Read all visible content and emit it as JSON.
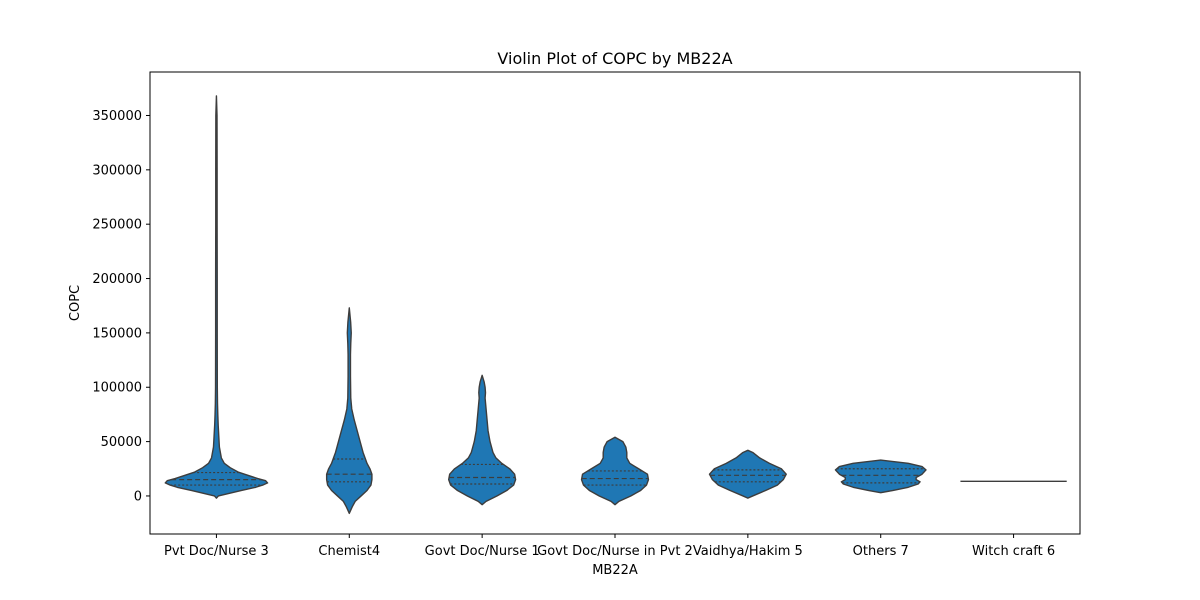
{
  "chart_data": {
    "type": "violin",
    "title": "Violin Plot of COPC by MB22A",
    "xlabel": "MB22A",
    "ylabel": "COPC",
    "ylim": [
      -35000,
      390000
    ],
    "yticks": [
      0,
      50000,
      100000,
      150000,
      200000,
      250000,
      300000,
      350000
    ],
    "categories": [
      "Pvt Doc/Nurse 3",
      "Chemist4",
      "Govt Doc/Nurse 1",
      "Govt Doc/Nurse in Pvt 2",
      "Vaidhya/Hakim 5",
      "Others 7",
      "Witch craft 6"
    ],
    "violin_color": "#1f77b4",
    "inner": "quartile",
    "violins": [
      {
        "category": "Pvt Doc/Nurse 3",
        "q1": 10000,
        "median": 15000,
        "q3": 21500,
        "profile": [
          [
            -2000,
            0
          ],
          [
            0,
            2
          ],
          [
            5000,
            25
          ],
          [
            8000,
            40
          ],
          [
            10000,
            47
          ],
          [
            12000,
            52
          ],
          [
            14000,
            50
          ],
          [
            16000,
            42
          ],
          [
            19000,
            32
          ],
          [
            22000,
            22
          ],
          [
            26000,
            14
          ],
          [
            30000,
            8
          ],
          [
            35000,
            5
          ],
          [
            45000,
            3
          ],
          [
            55000,
            2.4
          ],
          [
            65000,
            1.8
          ],
          [
            75000,
            1.4
          ],
          [
            85000,
            1.1
          ],
          [
            100000,
            0.9
          ],
          [
            150000,
            0.8
          ],
          [
            200000,
            0.8
          ],
          [
            250000,
            0.7
          ],
          [
            300000,
            0.7
          ],
          [
            350000,
            0.6
          ],
          [
            368000,
            0
          ]
        ]
      },
      {
        "category": "Chemist4",
        "q1": 13000,
        "median": 20000,
        "q3": 34000,
        "profile": [
          [
            -16000,
            0
          ],
          [
            -10000,
            3
          ],
          [
            -5000,
            6
          ],
          [
            0,
            12
          ],
          [
            5000,
            18
          ],
          [
            10000,
            22
          ],
          [
            15000,
            23
          ],
          [
            20000,
            23
          ],
          [
            25000,
            21
          ],
          [
            30000,
            18
          ],
          [
            35000,
            16
          ],
          [
            40000,
            14
          ],
          [
            50000,
            11
          ],
          [
            60000,
            8
          ],
          [
            70000,
            5
          ],
          [
            80000,
            2.5
          ],
          [
            90000,
            1.5
          ],
          [
            110000,
            1.2
          ],
          [
            130000,
            1.2
          ],
          [
            140000,
            1.5
          ],
          [
            150000,
            2
          ],
          [
            160000,
            1.4
          ],
          [
            173000,
            0
          ]
        ]
      },
      {
        "category": "Govt Doc/Nurse 1",
        "q1": 11000,
        "median": 17000,
        "q3": 29000,
        "profile": [
          [
            -8000,
            0
          ],
          [
            -5000,
            4
          ],
          [
            0,
            15
          ],
          [
            5000,
            25
          ],
          [
            10000,
            32
          ],
          [
            15000,
            34
          ],
          [
            20000,
            33
          ],
          [
            25000,
            28
          ],
          [
            30000,
            20
          ],
          [
            35000,
            14
          ],
          [
            40000,
            11
          ],
          [
            50000,
            8
          ],
          [
            60000,
            6
          ],
          [
            70000,
            5
          ],
          [
            80000,
            4
          ],
          [
            90000,
            3
          ],
          [
            95000,
            3.4
          ],
          [
            100000,
            3
          ],
          [
            105000,
            2
          ],
          [
            111000,
            0
          ]
        ]
      },
      {
        "category": "Govt Doc/Nurse in Pvt 2",
        "q1": 10000,
        "median": 16000,
        "q3": 23000,
        "profile": [
          [
            -8000,
            0
          ],
          [
            -5000,
            4
          ],
          [
            0,
            16
          ],
          [
            5000,
            26
          ],
          [
            10000,
            32
          ],
          [
            15000,
            34
          ],
          [
            20000,
            33
          ],
          [
            25000,
            24
          ],
          [
            30000,
            15
          ],
          [
            35000,
            12
          ],
          [
            40000,
            12
          ],
          [
            45000,
            11
          ],
          [
            50000,
            8
          ],
          [
            54000,
            0
          ]
        ]
      },
      {
        "category": "Vaidhya/Hakim 5",
        "q1": 13000,
        "median": 19000,
        "q3": 24000,
        "profile": [
          [
            -2000,
            0
          ],
          [
            0,
            5
          ],
          [
            5000,
            18
          ],
          [
            10000,
            30
          ],
          [
            15000,
            36
          ],
          [
            20000,
            39
          ],
          [
            25000,
            34
          ],
          [
            30000,
            22
          ],
          [
            35000,
            12
          ],
          [
            40000,
            5
          ],
          [
            42000,
            0
          ]
        ]
      },
      {
        "category": "Others 7",
        "q1": 12000,
        "median": 19000,
        "q3": 25000,
        "profile": [
          [
            3000,
            0
          ],
          [
            5000,
            12
          ],
          [
            8000,
            28
          ],
          [
            11000,
            38
          ],
          [
            13000,
            40
          ],
          [
            15000,
            36
          ],
          [
            17000,
            36
          ],
          [
            20000,
            42
          ],
          [
            24000,
            46
          ],
          [
            27000,
            42
          ],
          [
            30000,
            28
          ],
          [
            33000,
            0
          ]
        ]
      },
      {
        "category": "Witch craft 6",
        "q1": 13500,
        "median": 13500,
        "q3": 13500,
        "profile": [
          [
            13500,
            54
          ]
        ]
      }
    ]
  }
}
